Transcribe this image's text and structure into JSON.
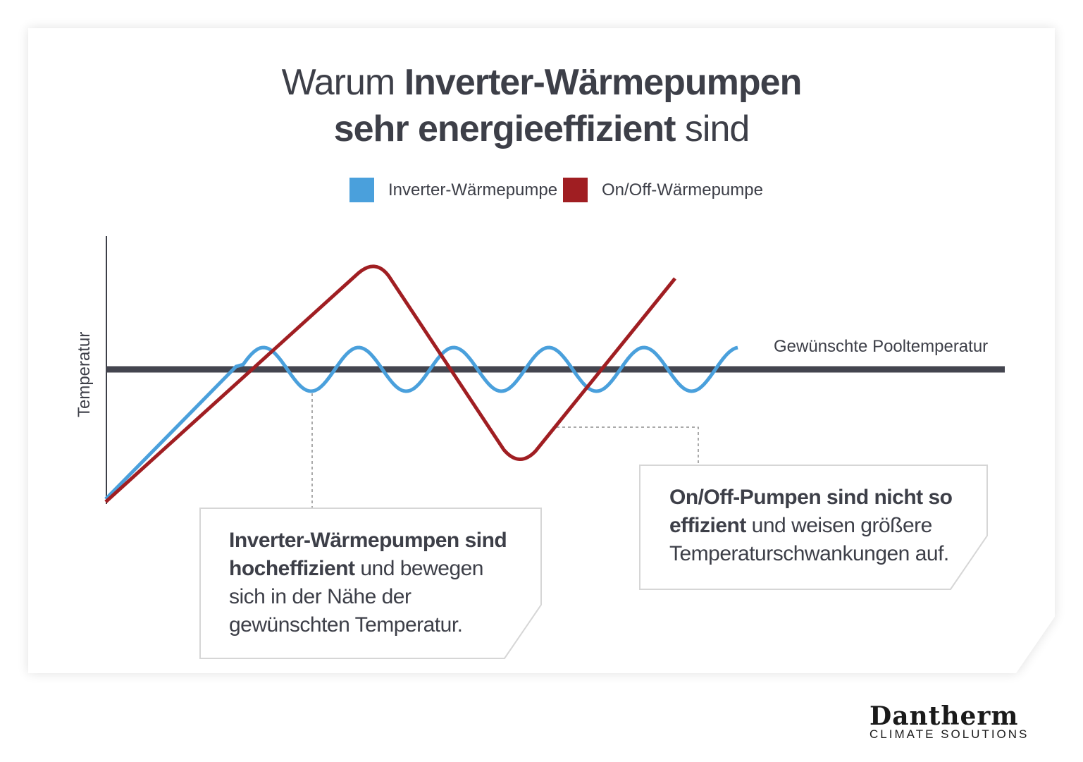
{
  "title": {
    "line1_light": "Warum ",
    "line1_bold": "Inverter-Wärmepumpen",
    "line2_bold": "sehr energieeffizient",
    "line2_light": " sind"
  },
  "legend": [
    {
      "label": "Inverter-Wärmepumpe",
      "color": "#4aa0dc"
    },
    {
      "label": "On/Off-Wärmepumpe",
      "color": "#a01e22"
    }
  ],
  "axis": {
    "ylabel": "Temperatur"
  },
  "target_label": "Gewünschte Pooltemperatur",
  "notes": {
    "inverter": {
      "bold": "Inverter-Wärmepumpen sind hocheffizient",
      "rest": " und bewegen sich in der Nähe der gewünschten Temperatur."
    },
    "onoff": {
      "bold": "On/Off-Pumpen sind nicht so effizient",
      "rest": " und weisen größere Temperaturschwankungen auf."
    }
  },
  "logo": {
    "name": "Dantherm",
    "tagline": "CLIMATE SOLUTIONS"
  },
  "colors": {
    "target_line": "#44454f",
    "text": "#3d3f48"
  }
}
